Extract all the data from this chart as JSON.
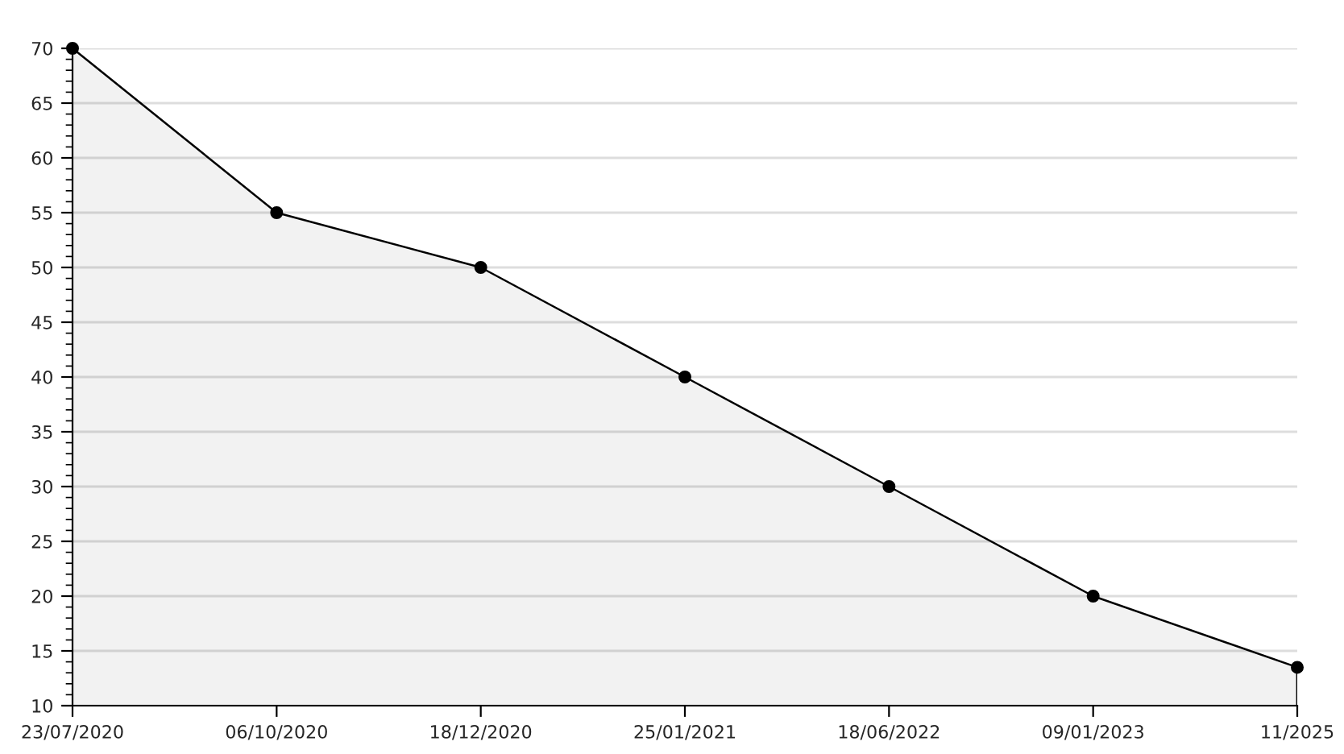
{
  "chart_data": {
    "type": "area",
    "categories": [
      "23/07/2020",
      "06/10/2020",
      "18/12/2020",
      "25/01/2021",
      "18/06/2022",
      "09/01/2023",
      "11/2025"
    ],
    "series": [
      {
        "color": "#000000",
        "values": [
          70,
          55,
          50,
          40,
          30,
          20,
          13.5
        ]
      }
    ],
    "ylim": [
      10,
      70
    ],
    "yticks": [
      10,
      15,
      20,
      25,
      30,
      35,
      40,
      45,
      50,
      55,
      60,
      65,
      70
    ],
    "grid": "y",
    "marker": "circle",
    "line_style": "solid",
    "legend": false
  }
}
